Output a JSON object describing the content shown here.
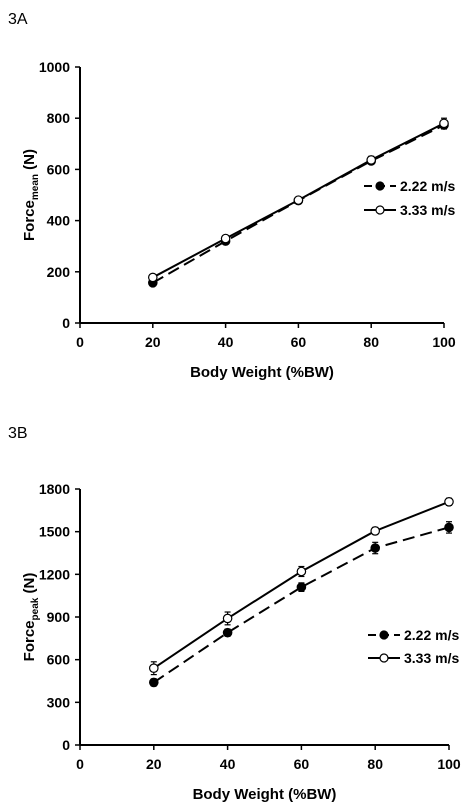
{
  "chart_data": [
    {
      "panel_label": "3A",
      "type": "line",
      "xlabel": "Body Weight (%BW)",
      "ylabel": {
        "main": "Force",
        "subscript": "mean",
        "unit": " (N)"
      },
      "x_ticks": [
        0,
        20,
        40,
        60,
        80,
        100
      ],
      "y_ticks": [
        0,
        200,
        400,
        600,
        800,
        1000
      ],
      "xlim": [
        0,
        100
      ],
      "ylim": [
        0,
        1000
      ],
      "grid": false,
      "legend_placement": "right",
      "x": [
        20,
        40,
        60,
        80,
        100
      ],
      "series": [
        {
          "name": "2.22 m/s",
          "line": "dashed",
          "marker": "filled-circle",
          "values": [
            157,
            320,
            478,
            633,
            773
          ],
          "errors": [
            8,
            10,
            10,
            12,
            15
          ]
        },
        {
          "name": "3.33 m/s",
          "line": "solid",
          "marker": "open-circle",
          "values": [
            178,
            330,
            480,
            637,
            780
          ],
          "errors": [
            8,
            10,
            10,
            14,
            20
          ]
        }
      ]
    },
    {
      "panel_label": "3B",
      "type": "line",
      "xlabel": "Body Weight (%BW)",
      "ylabel": {
        "main": "Force",
        "subscript": "peak",
        "unit": " (N)"
      },
      "x_ticks": [
        0,
        20,
        40,
        60,
        80,
        100
      ],
      "y_ticks": [
        0,
        300,
        600,
        900,
        1200,
        1500,
        1800
      ],
      "xlim": [
        0,
        100
      ],
      "ylim": [
        0,
        1800
      ],
      "grid": false,
      "legend_placement": "right",
      "x": [
        20,
        40,
        60,
        80,
        100
      ],
      "series": [
        {
          "name": "2.22 m/s",
          "line": "dashed",
          "marker": "filled-circle",
          "values": [
            440,
            790,
            1110,
            1385,
            1530
          ],
          "errors": [
            25,
            25,
            30,
            40,
            40
          ]
        },
        {
          "name": "3.33 m/s",
          "line": "solid",
          "marker": "open-circle",
          "values": [
            540,
            890,
            1220,
            1505,
            1710
          ],
          "errors": [
            45,
            45,
            35,
            25,
            25
          ]
        }
      ]
    }
  ]
}
